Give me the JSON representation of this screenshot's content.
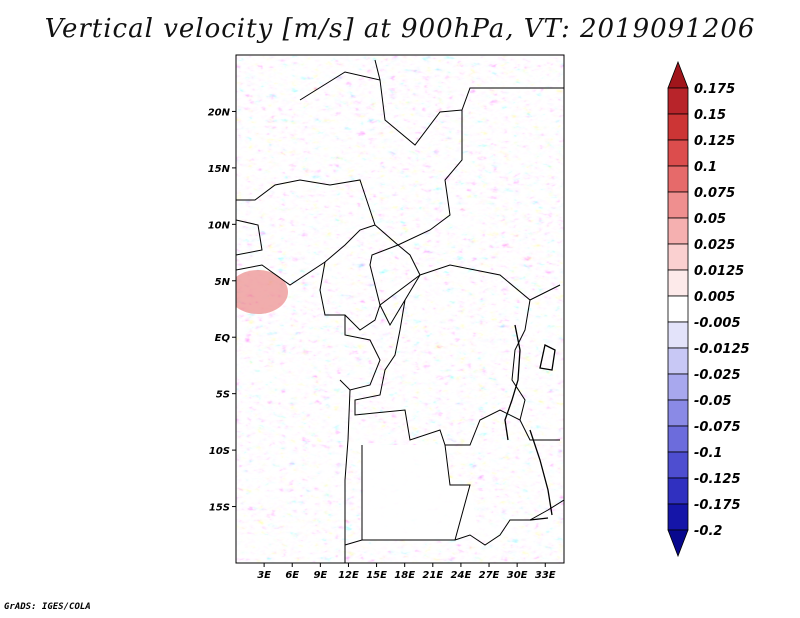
{
  "title": "Vertical velocity [m/s] at 900hPa, VT: 2019091206",
  "credit": "GrADS: IGES/COLA",
  "map": {
    "lat_range": [
      -20,
      25
    ],
    "lon_range": [
      0,
      35
    ],
    "lat_ticks": [
      {
        "value": 20,
        "label": "20N"
      },
      {
        "value": 15,
        "label": "15N"
      },
      {
        "value": 10,
        "label": "10N"
      },
      {
        "value": 5,
        "label": "5N"
      },
      {
        "value": 0,
        "label": "EQ"
      },
      {
        "value": -5,
        "label": "5S"
      },
      {
        "value": -10,
        "label": "10S"
      },
      {
        "value": -15,
        "label": "15S"
      }
    ],
    "lon_ticks": [
      {
        "value": 3,
        "label": "3E"
      },
      {
        "value": 6,
        "label": "6E"
      },
      {
        "value": 9,
        "label": "9E"
      },
      {
        "value": 12,
        "label": "12E"
      },
      {
        "value": 15,
        "label": "15E"
      },
      {
        "value": 18,
        "label": "18E"
      },
      {
        "value": 21,
        "label": "21E"
      },
      {
        "value": 24,
        "label": "24E"
      },
      {
        "value": 27,
        "label": "27E"
      },
      {
        "value": 30,
        "label": "30E"
      },
      {
        "value": 33,
        "label": "33E"
      }
    ]
  },
  "colorbar": {
    "levels": [
      "0.175",
      "0.15",
      "0.125",
      "0.1",
      "0.075",
      "0.05",
      "0.025",
      "0.0125",
      "0.005",
      "-0.005",
      "-0.0125",
      "-0.025",
      "-0.05",
      "-0.075",
      "-0.1",
      "-0.125",
      "-0.175",
      "-0.2"
    ],
    "colors": [
      "#a0151b",
      "#b8242a",
      "#cc3535",
      "#dc4d4d",
      "#e66a6a",
      "#ef8f8f",
      "#f5b0b0",
      "#fad0d0",
      "#fdeaea",
      "#ffffff",
      "#e3e3fa",
      "#c8c8f5",
      "#a8a8ee",
      "#8a8ae6",
      "#6c6cdc",
      "#4e4ed0",
      "#3030c0",
      "#1515a8",
      "#08088e"
    ]
  }
}
